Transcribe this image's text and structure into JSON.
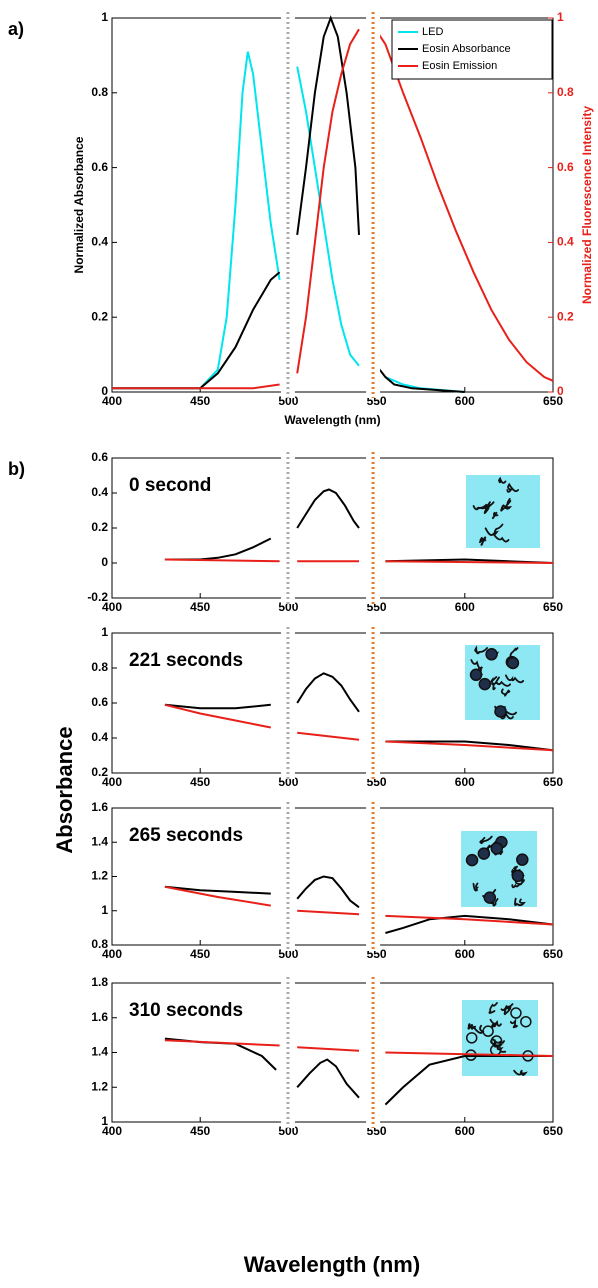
{
  "figure": {
    "ylabel": "Absorbance",
    "xlabel": "Wavelength (nm)"
  },
  "chart_data": [
    {
      "type": "line",
      "label": "a)",
      "xlabel": "Wavelength (nm)",
      "ylabel": "Normalized Absorbance",
      "y2label": "Normalized Fluorescence Intensity",
      "y2color": "#e8201a",
      "xlim": [
        400,
        650
      ],
      "xticks": [
        400,
        450,
        500,
        550,
        600,
        650
      ],
      "ylim": [
        0,
        1
      ],
      "yticks": [
        0,
        0.2,
        0.4,
        0.6,
        0.8,
        1
      ],
      "y2lim": [
        0,
        1
      ],
      "y2ticks": [
        0,
        0.2,
        0.4,
        0.6,
        0.8,
        1
      ],
      "legend": "upper right",
      "series": [
        {
          "name": "LED",
          "color": "#00e5ee",
          "x": [
            400,
            430,
            450,
            460,
            465,
            470,
            474,
            477,
            480,
            485,
            490,
            495,
            500,
            505,
            510,
            515,
            520,
            525,
            530,
            535,
            540,
            545,
            555,
            565,
            575,
            600
          ],
          "values": [
            0.01,
            0.01,
            0.01,
            0.06,
            0.2,
            0.5,
            0.8,
            0.91,
            0.85,
            0.65,
            0.45,
            0.3,
            null,
            0.87,
            0.75,
            0.6,
            0.45,
            0.3,
            0.18,
            0.1,
            0.07,
            null,
            0.04,
            0.02,
            0.01,
            0
          ]
        },
        {
          "name": "Eosin Absorbance",
          "color": "#000000",
          "x": [
            400,
            450,
            460,
            470,
            480,
            490,
            495,
            500,
            505,
            510,
            515,
            520,
            524,
            528,
            533,
            538,
            540,
            545,
            550,
            555,
            560,
            570,
            600
          ],
          "values": [
            0.01,
            0.01,
            0.05,
            0.12,
            0.22,
            0.3,
            0.32,
            null,
            0.42,
            0.6,
            0.8,
            0.95,
            1,
            0.95,
            0.8,
            0.6,
            0.42,
            null,
            0.07,
            0.04,
            0.02,
            0.01,
            0
          ]
        },
        {
          "name": "Eosin Emission",
          "color": "#e8201a",
          "axis": "y2",
          "x": [
            400,
            480,
            495,
            500,
            505,
            510,
            515,
            520,
            525,
            530,
            535,
            540,
            545,
            548,
            555,
            565,
            575,
            585,
            595,
            605,
            615,
            625,
            635,
            645,
            650
          ],
          "values": [
            0.01,
            0.01,
            0.02,
            null,
            0.05,
            0.2,
            0.4,
            0.6,
            0.75,
            0.85,
            0.93,
            0.97,
            null,
            0.98,
            0.93,
            0.8,
            0.68,
            0.55,
            0.43,
            0.32,
            0.22,
            0.14,
            0.08,
            0.04,
            0.03
          ]
        }
      ]
    },
    {
      "type": "line",
      "label": "b)",
      "annotation": "0 second",
      "xlim": [
        400,
        650
      ],
      "xticks": [
        400,
        450,
        500,
        550,
        600,
        650
      ],
      "ylim": [
        -0.2,
        0.6
      ],
      "yticks": [
        -0.2,
        0,
        0.2,
        0.4,
        0.6
      ],
      "series": [
        {
          "color": "#000000",
          "x": [
            430,
            450,
            460,
            470,
            480,
            490,
            500,
            505,
            510,
            515,
            520,
            523,
            527,
            532,
            537,
            540,
            545,
            555,
            600,
            650
          ],
          "values": [
            0.02,
            0.02,
            0.03,
            0.05,
            0.09,
            0.14,
            null,
            0.2,
            0.28,
            0.36,
            0.41,
            0.42,
            0.4,
            0.33,
            0.24,
            0.2,
            null,
            0.01,
            0.02,
            0
          ]
        },
        {
          "color": "#e8201a",
          "x": [
            430,
            495,
            500,
            505,
            540,
            545,
            555,
            650
          ],
          "values": [
            0.02,
            0.01,
            null,
            0.01,
            0.01,
            null,
            0.01,
            0
          ]
        }
      ]
    },
    {
      "type": "line",
      "annotation": "221 seconds",
      "xlim": [
        400,
        650
      ],
      "xticks": [
        400,
        450,
        500,
        550,
        600,
        650
      ],
      "ylim": [
        0.2,
        1
      ],
      "yticks": [
        0.2,
        0.4,
        0.6,
        0.8,
        1
      ],
      "series": [
        {
          "color": "#000000",
          "x": [
            430,
            450,
            470,
            490,
            500,
            505,
            510,
            515,
            520,
            525,
            530,
            535,
            540,
            545,
            555,
            580,
            600,
            625,
            650
          ],
          "values": [
            0.59,
            0.57,
            0.57,
            0.59,
            null,
            0.6,
            0.68,
            0.74,
            0.77,
            0.75,
            0.7,
            0.62,
            0.55,
            null,
            0.38,
            0.38,
            0.38,
            0.36,
            0.33
          ]
        },
        {
          "color": "#e8201a",
          "x": [
            430,
            450,
            470,
            490,
            500,
            505,
            540,
            545,
            555,
            600,
            650
          ],
          "values": [
            0.59,
            0.54,
            0.5,
            0.46,
            null,
            0.43,
            0.39,
            null,
            0.38,
            0.36,
            0.33
          ]
        }
      ]
    },
    {
      "type": "line",
      "annotation": "265 seconds",
      "xlim": [
        400,
        650
      ],
      "xticks": [
        400,
        450,
        500,
        550,
        600,
        650
      ],
      "ylim": [
        0.8,
        1.6
      ],
      "yticks": [
        0.8,
        1,
        1.2,
        1.4,
        1.6
      ],
      "series": [
        {
          "color": "#000000",
          "x": [
            430,
            450,
            470,
            490,
            500,
            505,
            510,
            515,
            520,
            525,
            530,
            535,
            540,
            545,
            555,
            565,
            580,
            600,
            625,
            650
          ],
          "values": [
            1.14,
            1.12,
            1.11,
            1.1,
            null,
            1.07,
            1.13,
            1.18,
            1.2,
            1.19,
            1.13,
            1.06,
            1.02,
            null,
            0.87,
            0.9,
            0.95,
            0.97,
            0.95,
            0.92
          ]
        },
        {
          "color": "#e8201a",
          "x": [
            430,
            460,
            490,
            500,
            505,
            540,
            545,
            555,
            600,
            650
          ],
          "values": [
            1.14,
            1.08,
            1.03,
            null,
            1.0,
            0.98,
            null,
            0.97,
            0.95,
            0.92
          ]
        }
      ]
    },
    {
      "type": "line",
      "annotation": "310 seconds",
      "xlim": [
        400,
        650
      ],
      "xticks": [
        400,
        450,
        500,
        550,
        600,
        650
      ],
      "ylim": [
        1,
        1.8
      ],
      "yticks": [
        1,
        1.2,
        1.4,
        1.6,
        1.8
      ],
      "series": [
        {
          "color": "#000000",
          "x": [
            430,
            450,
            470,
            485,
            493,
            500,
            505,
            512,
            518,
            522,
            527,
            533,
            540,
            545,
            555,
            565,
            580,
            600,
            625,
            650
          ],
          "values": [
            1.48,
            1.46,
            1.45,
            1.38,
            1.3,
            null,
            1.2,
            1.28,
            1.34,
            1.36,
            1.32,
            1.22,
            1.14,
            null,
            1.1,
            1.2,
            1.33,
            1.38,
            1.38,
            1.38
          ]
        },
        {
          "color": "#e8201a",
          "x": [
            430,
            495,
            500,
            505,
            540,
            545,
            555,
            650
          ],
          "values": [
            1.47,
            1.44,
            null,
            1.43,
            1.41,
            null,
            1.4,
            1.38
          ]
        }
      ]
    }
  ]
}
